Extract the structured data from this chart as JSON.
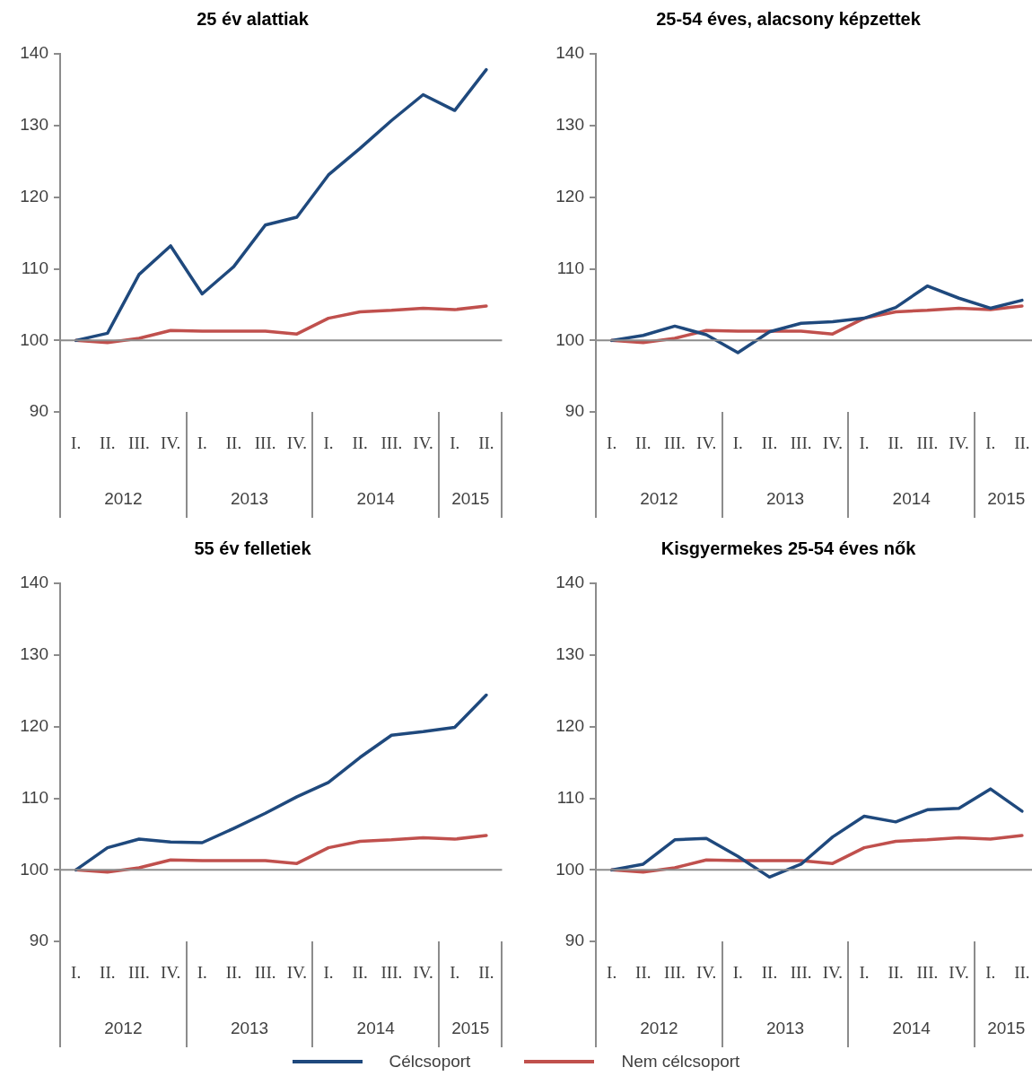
{
  "chart_data": [
    {
      "type": "line",
      "title": "25 év alattiak",
      "categories": [
        "I.",
        "II.",
        "III.",
        "IV.",
        "I.",
        "II.",
        "III.",
        "IV.",
        "I.",
        "II.",
        "III.",
        "IV.",
        "I.",
        "II."
      ],
      "annotations": [
        "2012",
        "2013",
        "2014",
        "2015"
      ],
      "ylim": [
        90,
        140
      ],
      "yticks": [
        90,
        100,
        110,
        120,
        130,
        140
      ],
      "grid": false,
      "marker": "none",
      "ref_lines": [
        {
          "axis": "y",
          "value": 100,
          "color": "#8c8c8c"
        }
      ],
      "series": [
        {
          "color": "#1f497d",
          "values": [
            100,
            101,
            109.2,
            113.2,
            106.5,
            110.3,
            116.1,
            117.2,
            123.1,
            126.8,
            130.7,
            134.3,
            132.1,
            137.8
          ]
        },
        {
          "color": "#c0504d",
          "values": [
            100,
            99.7,
            100.3,
            101.4,
            101.3,
            101.3,
            101.3,
            100.9,
            103.1,
            104,
            104.2,
            104.5,
            104.3,
            104.8
          ]
        }
      ]
    },
    {
      "type": "line",
      "title": "25-54 éves, alacsony képzettek",
      "categories": [
        "I.",
        "II.",
        "III.",
        "IV.",
        "I.",
        "II.",
        "III.",
        "IV.",
        "I.",
        "II.",
        "III.",
        "IV.",
        "I.",
        "II."
      ],
      "annotations": [
        "2012",
        "2013",
        "2014",
        "2015"
      ],
      "ylim": [
        90,
        140
      ],
      "yticks": [
        90,
        100,
        110,
        120,
        130,
        140
      ],
      "grid": false,
      "marker": "none",
      "ref_lines": [
        {
          "axis": "y",
          "value": 100,
          "color": "#8c8c8c"
        }
      ],
      "series": [
        {
          "color": "#1f497d",
          "values": [
            100,
            100.7,
            102,
            100.8,
            98.3,
            101.2,
            102.4,
            102.6,
            103.1,
            104.6,
            107.6,
            105.9,
            104.5,
            105.6
          ]
        },
        {
          "color": "#c0504d",
          "values": [
            100,
            99.7,
            100.3,
            101.4,
            101.3,
            101.3,
            101.3,
            100.9,
            103.1,
            104,
            104.2,
            104.5,
            104.3,
            104.8
          ]
        }
      ]
    },
    {
      "type": "line",
      "title": "55 év felletiek",
      "categories": [
        "I.",
        "II.",
        "III.",
        "IV.",
        "I.",
        "II.",
        "III.",
        "IV.",
        "I.",
        "II.",
        "III.",
        "IV.",
        "I.",
        "II."
      ],
      "annotations": [
        "2012",
        "2013",
        "2014",
        "2015"
      ],
      "ylim": [
        90,
        140
      ],
      "yticks": [
        90,
        100,
        110,
        120,
        130,
        140
      ],
      "grid": false,
      "marker": "none",
      "ref_lines": [
        {
          "axis": "y",
          "value": 100,
          "color": "#8c8c8c"
        }
      ],
      "series": [
        {
          "color": "#1f497d",
          "values": [
            100,
            103.1,
            104.3,
            103.9,
            103.8,
            105.8,
            107.9,
            110.2,
            112.2,
            115.7,
            118.8,
            119.3,
            119.9,
            124.4
          ]
        },
        {
          "color": "#c0504d",
          "values": [
            100,
            99.7,
            100.3,
            101.4,
            101.3,
            101.3,
            101.3,
            100.9,
            103.1,
            104,
            104.2,
            104.5,
            104.3,
            104.8
          ]
        }
      ]
    },
    {
      "type": "line",
      "title": "Kisgyermekes 25-54 éves nők",
      "categories": [
        "I.",
        "II.",
        "III.",
        "IV.",
        "I.",
        "II.",
        "III.",
        "IV.",
        "I.",
        "II.",
        "III.",
        "IV.",
        "I.",
        "II."
      ],
      "annotations": [
        "2012",
        "2013",
        "2014",
        "2015"
      ],
      "ylim": [
        90,
        140
      ],
      "yticks": [
        90,
        100,
        110,
        120,
        130,
        140
      ],
      "grid": false,
      "marker": "none",
      "legend": "bottom",
      "ref_lines": [
        {
          "axis": "y",
          "value": 100,
          "color": "#8c8c8c"
        }
      ],
      "series": [
        {
          "name": "Célcsoport",
          "color": "#1f497d",
          "values": [
            100,
            100.8,
            104.2,
            104.4,
            101.9,
            99,
            100.8,
            104.6,
            107.5,
            106.7,
            108.4,
            108.6,
            111.3,
            108.2
          ]
        },
        {
          "name": "Nem célcsoport",
          "color": "#c0504d",
          "values": [
            100,
            99.7,
            100.3,
            101.4,
            101.3,
            101.3,
            101.3,
            100.9,
            103.1,
            104,
            104.2,
            104.5,
            104.3,
            104.8
          ]
        }
      ]
    }
  ]
}
